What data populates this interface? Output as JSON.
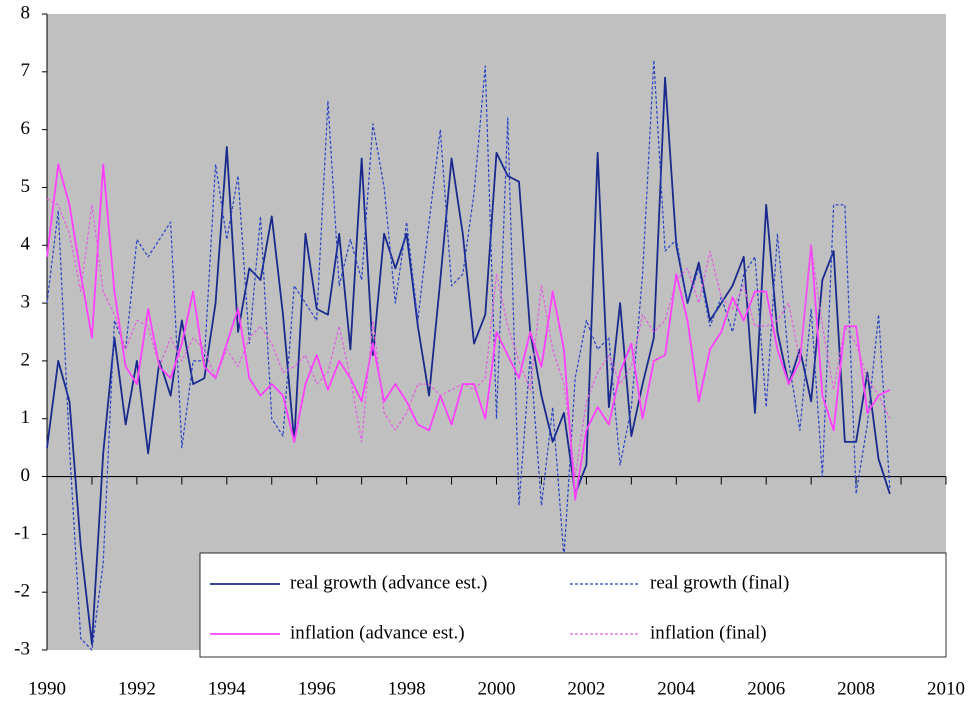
{
  "chart_data": {
    "type": "line",
    "x": [
      1990,
      1990.25,
      1990.5,
      1990.75,
      1991,
      1991.25,
      1991.5,
      1991.75,
      1992,
      1992.25,
      1992.5,
      1992.75,
      1993,
      1993.25,
      1993.5,
      1993.75,
      1994,
      1994.25,
      1994.5,
      1994.75,
      1995,
      1995.25,
      1995.5,
      1995.75,
      1996,
      1996.25,
      1996.5,
      1996.75,
      1997,
      1997.25,
      1997.5,
      1997.75,
      1998,
      1998.25,
      1998.5,
      1998.75,
      1999,
      1999.25,
      1999.5,
      1999.75,
      2000,
      2000.25,
      2000.5,
      2000.75,
      2001,
      2001.25,
      2001.5,
      2001.75,
      2002,
      2002.25,
      2002.5,
      2002.75,
      2003,
      2003.25,
      2003.5,
      2003.75,
      2004,
      2004.25,
      2004.5,
      2004.75,
      2005,
      2005.25,
      2005.5,
      2005.75,
      2006,
      2006.25,
      2006.5,
      2006.75,
      2007,
      2007.25,
      2007.5,
      2007.75,
      2008,
      2008.25,
      2008.5,
      2008.75
    ],
    "series": [
      {
        "name": "real growth (advance est.)",
        "color": "#1a2a8c",
        "dash": false,
        "values": [
          0.5,
          2.0,
          1.3,
          -1.2,
          -2.9,
          0.4,
          2.4,
          0.9,
          2.0,
          0.4,
          2.0,
          1.4,
          2.7,
          1.6,
          1.7,
          3.0,
          5.7,
          2.5,
          3.6,
          3.4,
          4.5,
          2.8,
          0.6,
          4.2,
          2.9,
          2.8,
          4.2,
          2.2,
          5.5,
          2.1,
          4.2,
          3.6,
          4.2,
          2.6,
          1.4,
          3.4,
          5.5,
          4.2,
          2.3,
          2.8,
          5.6,
          5.2,
          5.1,
          2.5,
          1.4,
          0.6,
          1.1,
          -0.3,
          0.2,
          5.6,
          1.2,
          3.0,
          0.7,
          1.6,
          2.4,
          6.9,
          4.0,
          3.0,
          3.7,
          2.7,
          3.0,
          3.3,
          3.8,
          1.1,
          4.7,
          2.5,
          1.6,
          2.2,
          1.3,
          3.4,
          3.9,
          0.6,
          0.6,
          1.8,
          0.3,
          -0.3
        ]
      },
      {
        "name": "real growth (final)",
        "color": "#2a44c4",
        "dash": true,
        "values": [
          3.0,
          4.6,
          0.5,
          -2.8,
          -3.0,
          -1.5,
          2.7,
          2.2,
          4.1,
          3.8,
          4.1,
          4.4,
          0.5,
          2.0,
          2.0,
          5.4,
          4.1,
          5.2,
          2.3,
          4.5,
          1.0,
          0.7,
          3.3,
          3.0,
          2.7,
          6.5,
          3.3,
          4.1,
          3.4,
          6.1,
          5.0,
          3.0,
          4.4,
          2.7,
          4.4,
          6.0,
          3.3,
          3.5,
          4.9,
          7.1,
          1.0,
          6.2,
          -0.5,
          2.1,
          -0.5,
          1.2,
          -1.4,
          1.7,
          2.7,
          2.2,
          2.4,
          0.2,
          1.2,
          3.5,
          7.2,
          3.9,
          4.1,
          3.0,
          3.6,
          2.6,
          3.1,
          2.5,
          3.5,
          3.8,
          1.2,
          4.2,
          2.0,
          0.8,
          2.9,
          0.0,
          4.7,
          4.7,
          -0.3,
          0.9,
          2.8,
          -0.2
        ]
      },
      {
        "name": "inflation (advance est.)",
        "color": "#ff40ff",
        "dash": false,
        "values": [
          3.8,
          5.4,
          4.7,
          3.5,
          2.4,
          5.4,
          3.2,
          1.9,
          1.6,
          2.9,
          1.9,
          1.7,
          2.3,
          3.2,
          1.9,
          1.7,
          2.3,
          2.9,
          1.7,
          1.4,
          1.6,
          1.4,
          0.6,
          1.6,
          2.1,
          1.5,
          2.0,
          1.7,
          1.3,
          2.3,
          1.3,
          1.6,
          1.3,
          0.9,
          0.8,
          1.4,
          0.9,
          1.6,
          1.6,
          1.0,
          2.5,
          2.1,
          1.7,
          2.5,
          1.9,
          3.2,
          2.2,
          -0.4,
          0.8,
          1.2,
          0.9,
          1.8,
          2.3,
          1.0,
          2.0,
          2.1,
          3.5,
          2.7,
          1.3,
          2.2,
          2.5,
          3.1,
          2.7,
          3.2,
          3.2,
          2.2,
          1.6,
          2.0,
          4.0,
          1.4,
          0.8,
          2.6,
          2.6,
          1.1,
          1.4,
          1.5
        ]
      },
      {
        "name": "inflation (final)",
        "color": "#e060e0",
        "dash": true,
        "values": [
          4.8,
          4.7,
          4.2,
          3.2,
          4.7,
          3.2,
          2.8,
          2.2,
          2.7,
          2.6,
          1.9,
          2.4,
          2.0,
          2.4,
          2.2,
          1.7,
          2.2,
          1.9,
          2.4,
          2.6,
          2.3,
          1.8,
          1.9,
          2.1,
          1.6,
          1.8,
          2.6,
          1.7,
          0.6,
          2.7,
          1.1,
          0.8,
          1.1,
          1.6,
          1.6,
          1.4,
          1.5,
          1.6,
          1.5,
          1.7,
          3.5,
          2.6,
          2.0,
          1.5,
          3.3,
          2.2,
          1.6,
          0.0,
          1.3,
          1.8,
          2.1,
          1.6,
          1.9,
          2.8,
          2.5,
          2.7,
          3.4,
          3.6,
          3.0,
          3.9,
          3.1,
          2.9,
          3.3,
          2.6,
          2.6,
          2.7,
          3.0,
          2.0,
          4.0,
          2.6,
          1.5,
          2.6,
          2.3,
          1.7,
          1.4,
          1.0
        ]
      }
    ],
    "xlim": [
      1990,
      2010
    ],
    "xticks": [
      1990,
      1992,
      1994,
      1996,
      1998,
      2000,
      2002,
      2004,
      2006,
      2008,
      2010
    ],
    "ylim": [
      -3,
      8
    ],
    "yticks": [
      -3,
      -2,
      -1,
      0,
      1,
      2,
      3,
      4,
      5,
      6,
      7,
      8
    ],
    "background": "#c0c0c0",
    "legend": "bottom"
  }
}
